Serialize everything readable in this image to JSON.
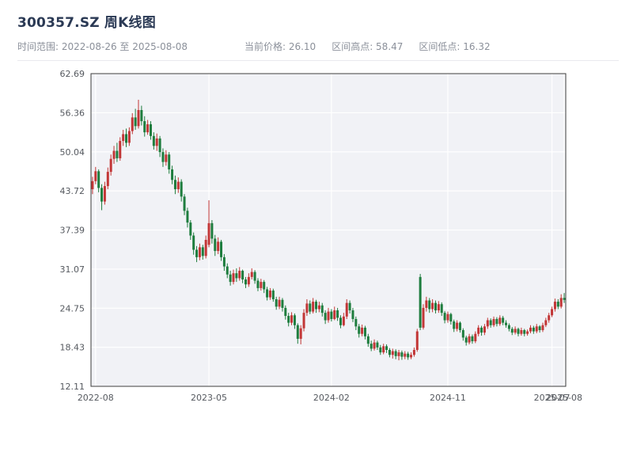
{
  "header": {
    "title": "300357.SZ 周K线图",
    "date_range": "时间范围: 2022-08-26 至 2025-08-08",
    "current_price": "当前价格: 26.10",
    "range_high": "区间高点: 58.47",
    "range_low": "区间低点: 16.32"
  },
  "chart_data": {
    "type": "candlestick",
    "title": "300357.SZ 周K线图",
    "symbol": "300357.SZ",
    "period": "周K",
    "date_start": "2022-08-26",
    "date_end": "2025-08-08",
    "current_price": 26.1,
    "range_high": 58.47,
    "range_low": 16.32,
    "ylim": [
      12.11,
      62.69
    ],
    "y_ticks": [
      12.11,
      18.43,
      24.75,
      31.07,
      37.39,
      43.72,
      50.04,
      56.36,
      62.69
    ],
    "x_ticks": [
      {
        "i": 1,
        "label": "2022-08"
      },
      {
        "i": 38,
        "label": "2023-05"
      },
      {
        "i": 78,
        "label": "2024-02"
      },
      {
        "i": 116,
        "label": "2024-11"
      },
      {
        "i": 150,
        "label": "2025-07"
      },
      {
        "i": 154,
        "label": "2025-08"
      }
    ],
    "up_color": "#c23636",
    "down_color": "#1e7d3e",
    "plot_bg": "#f1f2f6",
    "grid_color": "#ffffff",
    "candles": [
      [
        44.0,
        46.0,
        43.2,
        45.3
      ],
      [
        45.3,
        47.6,
        44.8,
        46.9
      ],
      [
        46.9,
        47.2,
        43.5,
        44.2
      ],
      [
        44.2,
        44.8,
        40.6,
        42.0
      ],
      [
        42.0,
        45.2,
        41.5,
        44.5
      ],
      [
        44.5,
        47.5,
        44.0,
        46.8
      ],
      [
        46.8,
        49.6,
        46.2,
        48.9
      ],
      [
        48.9,
        51.0,
        48.1,
        50.2
      ],
      [
        50.2,
        51.5,
        48.4,
        49.0
      ],
      [
        49.0,
        52.4,
        48.6,
        51.8
      ],
      [
        51.8,
        53.6,
        51.0,
        52.9
      ],
      [
        52.9,
        53.8,
        50.8,
        51.5
      ],
      [
        51.5,
        54.0,
        51.0,
        53.4
      ],
      [
        53.4,
        56.3,
        52.9,
        55.6
      ],
      [
        55.6,
        57.0,
        53.6,
        54.2
      ],
      [
        54.2,
        58.47,
        53.8,
        56.8
      ],
      [
        56.8,
        57.5,
        54.3,
        55.0
      ],
      [
        55.0,
        55.8,
        52.5,
        53.2
      ],
      [
        53.2,
        55.2,
        52.8,
        54.5
      ],
      [
        54.5,
        55.0,
        52.0,
        52.6
      ],
      [
        52.6,
        53.2,
        50.4,
        51.0
      ],
      [
        51.0,
        53.0,
        50.2,
        52.2
      ],
      [
        52.2,
        52.6,
        49.2,
        50.0
      ],
      [
        50.0,
        50.6,
        47.6,
        48.4
      ],
      [
        48.4,
        50.3,
        47.8,
        49.6
      ],
      [
        49.6,
        50.0,
        46.5,
        47.2
      ],
      [
        47.2,
        47.8,
        44.8,
        45.5
      ],
      [
        45.5,
        46.2,
        43.2,
        44.0
      ],
      [
        44.0,
        45.9,
        43.4,
        45.2
      ],
      [
        45.2,
        45.6,
        42.0,
        42.8
      ],
      [
        42.8,
        43.2,
        39.8,
        40.5
      ],
      [
        40.5,
        41.0,
        37.8,
        38.6
      ],
      [
        38.6,
        39.0,
        35.8,
        36.5
      ],
      [
        36.5,
        37.0,
        33.4,
        34.2
      ],
      [
        34.2,
        34.8,
        32.2,
        33.0
      ],
      [
        33.0,
        35.2,
        32.5,
        34.6
      ],
      [
        34.6,
        35.0,
        32.6,
        33.2
      ],
      [
        33.2,
        36.5,
        32.8,
        35.8
      ],
      [
        35.0,
        42.2,
        34.6,
        38.5
      ],
      [
        38.5,
        39.0,
        35.2,
        36.0
      ],
      [
        36.0,
        36.6,
        33.2,
        34.0
      ],
      [
        34.0,
        36.2,
        33.5,
        35.5
      ],
      [
        35.5,
        35.8,
        32.4,
        33.0
      ],
      [
        33.0,
        33.5,
        30.8,
        31.5
      ],
      [
        31.5,
        32.0,
        29.6,
        30.2
      ],
      [
        30.2,
        30.8,
        28.4,
        29.0
      ],
      [
        29.0,
        31.0,
        28.6,
        30.4
      ],
      [
        30.4,
        31.2,
        29.0,
        29.6
      ],
      [
        29.6,
        31.4,
        29.2,
        30.8
      ],
      [
        30.8,
        31.0,
        28.8,
        29.4
      ],
      [
        29.4,
        29.8,
        28.0,
        28.6
      ],
      [
        28.6,
        30.4,
        28.2,
        29.8
      ],
      [
        29.8,
        31.2,
        29.4,
        30.6
      ],
      [
        30.6,
        30.9,
        28.7,
        29.2
      ],
      [
        29.2,
        29.6,
        27.5,
        28.0
      ],
      [
        28.0,
        29.5,
        27.6,
        29.0
      ],
      [
        29.0,
        29.3,
        27.2,
        27.8
      ],
      [
        27.8,
        28.2,
        26.0,
        26.5
      ],
      [
        26.5,
        28.0,
        26.1,
        27.6
      ],
      [
        27.6,
        27.9,
        25.8,
        26.2
      ],
      [
        26.2,
        26.6,
        24.5,
        25.0
      ],
      [
        25.0,
        26.6,
        24.6,
        26.1
      ],
      [
        26.1,
        26.4,
        24.2,
        24.8
      ],
      [
        24.8,
        25.2,
        22.9,
        23.5
      ],
      [
        23.5,
        24.0,
        21.8,
        22.4
      ],
      [
        22.4,
        24.1,
        22.0,
        23.6
      ],
      [
        23.6,
        23.9,
        21.4,
        22.0
      ],
      [
        22.0,
        22.3,
        19.0,
        19.8
      ],
      [
        19.8,
        22.0,
        18.9,
        21.5
      ],
      [
        21.5,
        24.6,
        21.0,
        24.0
      ],
      [
        24.0,
        26.2,
        23.5,
        25.5
      ],
      [
        25.5,
        26.0,
        23.8,
        24.2
      ],
      [
        24.2,
        26.4,
        23.9,
        25.8
      ],
      [
        25.8,
        26.1,
        24.0,
        24.6
      ],
      [
        24.6,
        25.8,
        24.1,
        25.2
      ],
      [
        25.2,
        25.6,
        23.4,
        24.0
      ],
      [
        24.0,
        24.4,
        22.2,
        22.8
      ],
      [
        22.8,
        24.8,
        22.4,
        24.2
      ],
      [
        24.2,
        24.6,
        22.6,
        23.0
      ],
      [
        23.0,
        25.0,
        22.8,
        24.4
      ],
      [
        24.4,
        24.8,
        22.7,
        23.2
      ],
      [
        23.2,
        23.6,
        21.5,
        22.0
      ],
      [
        22.0,
        24.0,
        21.8,
        23.4
      ],
      [
        23.4,
        26.2,
        23.0,
        25.6
      ],
      [
        25.6,
        26.0,
        23.9,
        24.4
      ],
      [
        24.4,
        24.8,
        22.5,
        23.0
      ],
      [
        23.0,
        23.4,
        21.2,
        21.8
      ],
      [
        21.8,
        22.2,
        20.0,
        20.6
      ],
      [
        20.6,
        22.1,
        20.2,
        21.6
      ],
      [
        21.6,
        21.9,
        19.7,
        20.2
      ],
      [
        20.2,
        20.6,
        18.5,
        19.0
      ],
      [
        19.0,
        19.5,
        17.8,
        18.2
      ],
      [
        18.2,
        19.7,
        17.9,
        19.2
      ],
      [
        19.2,
        19.5,
        18.0,
        18.4
      ],
      [
        18.4,
        18.8,
        17.2,
        17.6
      ],
      [
        17.6,
        19.0,
        17.3,
        18.6
      ],
      [
        18.6,
        18.9,
        17.5,
        18.0
      ],
      [
        18.0,
        18.3,
        16.8,
        17.2
      ],
      [
        17.2,
        18.2,
        16.6,
        17.8
      ],
      [
        17.8,
        18.1,
        16.5,
        17.0
      ],
      [
        17.0,
        18.0,
        16.32,
        17.6
      ],
      [
        17.6,
        17.9,
        16.4,
        16.9
      ],
      [
        16.9,
        17.8,
        16.5,
        17.4
      ],
      [
        17.4,
        17.7,
        16.4,
        16.8
      ],
      [
        16.8,
        17.6,
        16.5,
        17.2
      ],
      [
        17.2,
        18.4,
        16.9,
        18.0
      ],
      [
        18.0,
        21.4,
        17.7,
        21.0
      ],
      [
        29.8,
        30.3,
        21.2,
        21.6
      ],
      [
        21.6,
        25.4,
        21.3,
        24.8
      ],
      [
        24.8,
        26.6,
        24.2,
        26.0
      ],
      [
        26.0,
        26.4,
        24.0,
        24.6
      ],
      [
        24.6,
        26.2,
        24.1,
        25.6
      ],
      [
        25.6,
        26.0,
        23.9,
        24.4
      ],
      [
        24.4,
        25.9,
        24.0,
        25.4
      ],
      [
        25.4,
        25.7,
        23.5,
        24.0
      ],
      [
        24.0,
        24.3,
        22.3,
        22.8
      ],
      [
        22.8,
        24.2,
        22.4,
        23.8
      ],
      [
        23.8,
        24.0,
        22.1,
        22.6
      ],
      [
        22.6,
        22.9,
        20.9,
        21.4
      ],
      [
        21.4,
        22.8,
        21.0,
        22.4
      ],
      [
        22.4,
        22.6,
        20.8,
        21.2
      ],
      [
        21.2,
        21.5,
        19.5,
        20.0
      ],
      [
        20.0,
        20.3,
        18.7,
        19.2
      ],
      [
        19.2,
        20.6,
        18.9,
        20.2
      ],
      [
        20.2,
        20.5,
        19.0,
        19.4
      ],
      [
        19.4,
        21.0,
        19.1,
        20.6
      ],
      [
        20.6,
        22.0,
        20.2,
        21.6
      ],
      [
        21.6,
        21.9,
        20.3,
        20.8
      ],
      [
        20.8,
        22.2,
        20.4,
        21.8
      ],
      [
        21.8,
        23.2,
        21.4,
        22.8
      ],
      [
        22.8,
        23.1,
        21.6,
        22.0
      ],
      [
        22.0,
        23.4,
        21.7,
        23.0
      ],
      [
        23.0,
        23.3,
        21.8,
        22.2
      ],
      [
        22.2,
        23.6,
        21.9,
        23.2
      ],
      [
        23.2,
        23.5,
        22.0,
        22.4
      ],
      [
        22.4,
        22.8,
        21.6,
        22.0
      ],
      [
        22.0,
        22.3,
        21.0,
        21.4
      ],
      [
        21.4,
        21.7,
        20.4,
        20.8
      ],
      [
        20.8,
        21.8,
        20.5,
        21.4
      ],
      [
        21.4,
        21.6,
        20.2,
        20.6
      ],
      [
        20.6,
        21.6,
        20.3,
        21.2
      ],
      [
        21.2,
        21.4,
        20.2,
        20.6
      ],
      [
        20.6,
        21.3,
        20.3,
        21.0
      ],
      [
        21.0,
        22.0,
        20.7,
        21.6
      ],
      [
        21.6,
        21.9,
        20.6,
        21.0
      ],
      [
        21.0,
        22.2,
        20.7,
        21.8
      ],
      [
        21.8,
        22.0,
        20.8,
        21.2
      ],
      [
        21.2,
        22.4,
        20.9,
        22.0
      ],
      [
        22.0,
        23.2,
        21.7,
        22.8
      ],
      [
        22.8,
        24.0,
        22.4,
        23.6
      ],
      [
        23.6,
        25.0,
        23.3,
        24.6
      ],
      [
        24.6,
        26.3,
        24.2,
        25.8
      ],
      [
        25.8,
        26.2,
        24.6,
        25.0
      ],
      [
        25.0,
        27.0,
        24.7,
        26.4
      ],
      [
        26.4,
        27.2,
        25.6,
        26.1
      ]
    ]
  }
}
